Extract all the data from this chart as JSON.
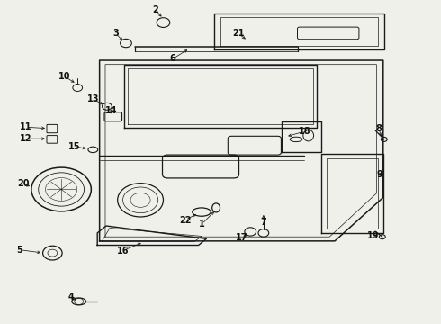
{
  "bg_color": "#f0f0eb",
  "line_color": "#1a1a1a",
  "label_color": "#111111",
  "fig_width": 4.9,
  "fig_height": 3.6,
  "dpi": 100
}
